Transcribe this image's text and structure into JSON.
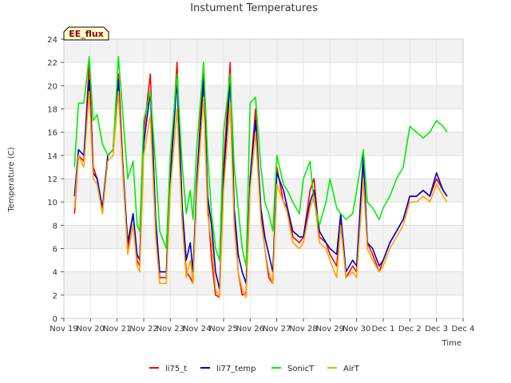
{
  "chart_data": {
    "type": "line",
    "title": "Instument Temperatures",
    "xlabel": "Time",
    "ylabel": "Temperature (C)",
    "site_label": "EE_flux",
    "ylim": [
      0,
      24
    ],
    "yticks": [
      0,
      2,
      4,
      6,
      8,
      10,
      12,
      14,
      16,
      18,
      20,
      22,
      24
    ],
    "xlim": [
      0,
      15
    ],
    "xtick_labels": [
      "Nov 19",
      "Nov 20",
      "Nov 21",
      "Nov 22",
      "Nov 23",
      "Nov 24",
      "Nov 25",
      "Nov 26",
      "Nov 27",
      "Nov 28",
      "Nov 29",
      "Nov 30",
      "Dec 1",
      "Dec 2",
      "Dec 3",
      "Dec 4"
    ],
    "x": [
      0.4,
      0.55,
      0.75,
      0.95,
      1.1,
      1.25,
      1.45,
      1.65,
      1.85,
      2.05,
      2.2,
      2.4,
      2.6,
      2.75,
      2.85,
      3.0,
      3.25,
      3.45,
      3.6,
      3.85,
      4.0,
      4.25,
      4.45,
      4.6,
      4.75,
      4.85,
      5.0,
      5.25,
      5.4,
      5.55,
      5.7,
      5.85,
      6.0,
      6.25,
      6.4,
      6.55,
      6.7,
      6.85,
      7.0,
      7.2,
      7.4,
      7.55,
      7.7,
      7.85,
      8.0,
      8.25,
      8.4,
      8.6,
      8.85,
      9.0,
      9.25,
      9.4,
      9.6,
      9.85,
      10.0,
      10.25,
      10.4,
      10.6,
      10.85,
      11.0,
      11.25,
      11.4,
      11.6,
      11.85,
      12.0,
      12.25,
      12.5,
      12.75,
      13.0,
      13.25,
      13.5,
      13.75,
      14.0,
      14.25,
      14.4
    ],
    "series": [
      {
        "name": "li75_t",
        "color": "#ff0000",
        "values": [
          9.0,
          14.0,
          13.5,
          22.0,
          13.0,
          12.0,
          9.0,
          14.0,
          14.5,
          21.0,
          14.0,
          6.0,
          9.0,
          5.0,
          4.5,
          16.0,
          21.0,
          8.0,
          3.5,
          3.5,
          12.0,
          22.0,
          9.0,
          4.0,
          3.5,
          3.0,
          12.0,
          22.0,
          10.0,
          5.0,
          2.0,
          1.8,
          13.0,
          22.0,
          9.0,
          4.0,
          2.0,
          2.2,
          12.0,
          18.0,
          9.0,
          6.0,
          3.5,
          3.0,
          13.0,
          10.0,
          9.5,
          7.0,
          6.5,
          7.0,
          11.0,
          12.0,
          7.0,
          6.5,
          5.5,
          4.5,
          8.5,
          3.5,
          4.5,
          4.0,
          13.5,
          6.5,
          5.5,
          4.0,
          5.0,
          6.5,
          7.5,
          8.5,
          10.5,
          10.5,
          11.0,
          10.5,
          12.0,
          11.0,
          10.5
        ]
      },
      {
        "name": "li77_temp",
        "color": "#0000cc",
        "values": [
          10.5,
          14.5,
          14.0,
          20.5,
          12.5,
          12.0,
          9.5,
          14.0,
          14.5,
          20.5,
          13.5,
          6.5,
          9.0,
          5.5,
          5.0,
          15.0,
          19.5,
          8.5,
          4.0,
          4.0,
          12.0,
          20.5,
          9.5,
          5.0,
          6.5,
          4.0,
          12.0,
          20.5,
          10.5,
          8.0,
          4.0,
          2.5,
          12.0,
          20.5,
          9.5,
          5.5,
          4.0,
          3.0,
          12.0,
          17.0,
          9.5,
          7.0,
          5.5,
          4.0,
          12.5,
          11.0,
          9.5,
          7.5,
          7.0,
          7.0,
          10.0,
          11.0,
          7.5,
          6.5,
          6.0,
          5.5,
          9.0,
          4.0,
          5.0,
          4.5,
          14.0,
          6.5,
          6.0,
          4.5,
          5.0,
          6.5,
          7.5,
          8.5,
          10.5,
          10.5,
          11.0,
          10.5,
          12.5,
          11.0,
          10.5
        ]
      },
      {
        "name": "SonicT",
        "color": "#00ee00",
        "values": [
          13.0,
          18.5,
          18.5,
          22.5,
          17.0,
          17.5,
          15.0,
          14.0,
          14.5,
          22.5,
          18.0,
          12.0,
          13.5,
          8.0,
          7.5,
          17.0,
          19.5,
          13.0,
          7.5,
          6.0,
          14.0,
          21.0,
          13.0,
          9.0,
          11.0,
          8.5,
          15.0,
          22.0,
          14.0,
          9.0,
          6.0,
          5.0,
          16.0,
          21.0,
          13.0,
          9.5,
          6.0,
          4.5,
          18.5,
          19.0,
          13.0,
          10.0,
          9.0,
          7.5,
          14.0,
          11.5,
          11.0,
          10.0,
          9.0,
          12.0,
          13.5,
          10.0,
          8.0,
          10.0,
          12.0,
          9.5,
          9.0,
          8.5,
          9.0,
          11.0,
          14.5,
          10.0,
          9.5,
          8.5,
          9.5,
          10.5,
          12.0,
          13.0,
          16.5,
          16.0,
          15.5,
          16.0,
          17.0,
          16.5,
          16.0
        ]
      },
      {
        "name": "AirT",
        "color": "#ffa500",
        "values": [
          9.5,
          14.0,
          13.0,
          19.5,
          12.0,
          11.5,
          9.0,
          13.5,
          14.0,
          19.5,
          13.0,
          5.5,
          8.0,
          4.5,
          4.0,
          14.0,
          17.5,
          7.0,
          3.0,
          3.0,
          11.0,
          18.0,
          8.0,
          3.5,
          5.0,
          3.0,
          11.0,
          19.0,
          9.0,
          6.5,
          2.5,
          1.8,
          11.0,
          18.5,
          8.0,
          4.0,
          2.5,
          1.8,
          11.0,
          16.0,
          8.5,
          6.0,
          4.0,
          3.0,
          11.5,
          10.0,
          9.0,
          6.5,
          6.0,
          6.5,
          9.5,
          10.5,
          6.5,
          6.0,
          5.0,
          3.5,
          8.0,
          3.5,
          4.0,
          3.5,
          12.0,
          6.0,
          5.0,
          4.0,
          4.5,
          6.0,
          7.0,
          8.0,
          10.0,
          10.0,
          10.5,
          10.0,
          11.5,
          10.5,
          10.0
        ]
      }
    ],
    "legend_position": "bottom",
    "grid": true
  }
}
